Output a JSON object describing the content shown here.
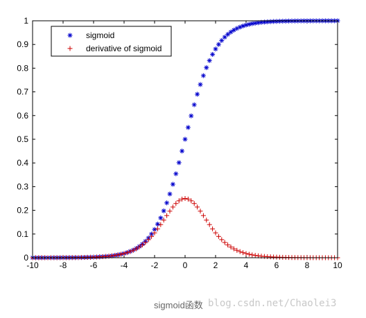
{
  "chart_data": {
    "type": "scatter",
    "title": "",
    "xlabel": "",
    "ylabel": "",
    "xlim": [
      -10,
      10
    ],
    "ylim": [
      0,
      1
    ],
    "x_ticks": [
      -10,
      -8,
      -6,
      -4,
      -2,
      0,
      2,
      4,
      6,
      8,
      10
    ],
    "y_ticks": [
      0,
      0.1,
      0.2,
      0.3,
      0.4,
      0.5,
      0.6,
      0.7,
      0.8,
      0.9,
      1
    ],
    "x_tick_labels": [
      "-10",
      "-8",
      "-6",
      "-4",
      "-2",
      "0",
      "2",
      "4",
      "6",
      "8",
      "10"
    ],
    "y_tick_labels": [
      "0",
      "0.1",
      "0.2",
      "0.3",
      "0.4",
      "0.5",
      "0.6",
      "0.7",
      "0.8",
      "0.9",
      "1"
    ],
    "x": [
      -10.0,
      -9.8,
      -9.6,
      -9.4,
      -9.2,
      -9.0,
      -8.8,
      -8.6,
      -8.4,
      -8.2,
      -8.0,
      -7.8,
      -7.6,
      -7.4,
      -7.2,
      -7.0,
      -6.8,
      -6.6,
      -6.4,
      -6.2,
      -6.0,
      -5.8,
      -5.6,
      -5.4,
      -5.2,
      -5.0,
      -4.8,
      -4.6,
      -4.4,
      -4.2,
      -4.0,
      -3.8,
      -3.6,
      -3.4,
      -3.2,
      -3.0,
      -2.8,
      -2.6,
      -2.4,
      -2.2,
      -2.0,
      -1.8,
      -1.6,
      -1.4,
      -1.2,
      -1.0,
      -0.8,
      -0.6,
      -0.4,
      -0.2,
      0.0,
      0.2,
      0.4,
      0.6,
      0.8,
      1.0,
      1.2,
      1.4,
      1.6,
      1.8,
      2.0,
      2.2,
      2.4,
      2.6,
      2.8,
      3.0,
      3.2,
      3.4,
      3.6,
      3.8,
      4.0,
      4.2,
      4.4,
      4.6,
      4.8,
      5.0,
      5.2,
      5.4,
      5.6,
      5.8,
      6.0,
      6.2,
      6.4,
      6.6,
      6.8,
      7.0,
      7.2,
      7.4,
      7.6,
      7.8,
      8.0,
      8.2,
      8.4,
      8.6,
      8.8,
      9.0,
      9.2,
      9.4,
      9.6,
      9.8,
      10.0
    ],
    "series": [
      {
        "name": "sigmoid",
        "marker": "asterisk",
        "color": "#0000cc",
        "values": [
          0.0,
          0.0001,
          0.0001,
          0.0001,
          0.0001,
          0.0001,
          0.0002,
          0.0002,
          0.0002,
          0.0003,
          0.0003,
          0.0004,
          0.0005,
          0.0006,
          0.0007,
          0.0009,
          0.0011,
          0.0014,
          0.0017,
          0.002,
          0.0025,
          0.003,
          0.0037,
          0.0045,
          0.0055,
          0.0067,
          0.0082,
          0.01,
          0.0121,
          0.0148,
          0.018,
          0.0219,
          0.0266,
          0.0323,
          0.0392,
          0.0474,
          0.0573,
          0.0691,
          0.0832,
          0.0998,
          0.1192,
          0.1419,
          0.168,
          0.1978,
          0.2315,
          0.2689,
          0.31,
          0.3543,
          0.4013,
          0.4502,
          0.5,
          0.5498,
          0.5987,
          0.6457,
          0.69,
          0.7311,
          0.7685,
          0.8022,
          0.832,
          0.8581,
          0.8808,
          0.9002,
          0.9168,
          0.9309,
          0.9427,
          0.9526,
          0.9608,
          0.9677,
          0.9734,
          0.9781,
          0.982,
          0.9852,
          0.9879,
          0.99,
          0.9918,
          0.9933,
          0.9945,
          0.9955,
          0.9963,
          0.997,
          0.9975,
          0.998,
          0.9983,
          0.9986,
          0.9989,
          0.9991,
          0.9993,
          0.9994,
          0.9995,
          0.9996,
          0.9997,
          0.9997,
          0.9998,
          0.9998,
          0.9998,
          0.9999,
          0.9999,
          0.9999,
          0.9999,
          0.9999,
          1.0
        ]
      },
      {
        "name": "derivative of sigmoid",
        "marker": "plus",
        "color": "#cc0000",
        "values": [
          0.0,
          0.0001,
          0.0001,
          0.0001,
          0.0001,
          0.0001,
          0.0002,
          0.0002,
          0.0002,
          0.0003,
          0.0003,
          0.0004,
          0.0005,
          0.0006,
          0.0007,
          0.0009,
          0.0011,
          0.0014,
          0.0017,
          0.002,
          0.0025,
          0.003,
          0.0037,
          0.0045,
          0.0055,
          0.0066,
          0.0081,
          0.0099,
          0.012,
          0.0146,
          0.0177,
          0.0214,
          0.0259,
          0.0313,
          0.0376,
          0.0452,
          0.054,
          0.0643,
          0.0763,
          0.0898,
          0.105,
          0.1217,
          0.1398,
          0.1587,
          0.1779,
          0.1966,
          0.2139,
          0.2288,
          0.2403,
          0.2475,
          0.25,
          0.2475,
          0.2403,
          0.2288,
          0.2139,
          0.1966,
          0.1779,
          0.1587,
          0.1398,
          0.1217,
          0.105,
          0.0898,
          0.0763,
          0.0643,
          0.054,
          0.0452,
          0.0376,
          0.0313,
          0.0259,
          0.0214,
          0.0177,
          0.0146,
          0.012,
          0.0099,
          0.0081,
          0.0066,
          0.0055,
          0.0045,
          0.0037,
          0.003,
          0.0025,
          0.002,
          0.0017,
          0.0014,
          0.0011,
          0.0009,
          0.0007,
          0.0006,
          0.0005,
          0.0004,
          0.0003,
          0.0003,
          0.0002,
          0.0002,
          0.0002,
          0.0001,
          0.0001,
          0.0001,
          0.0001,
          0.0001,
          0.0
        ]
      }
    ],
    "legend": {
      "position": "top-left",
      "entries": [
        "sigmoid",
        "derivative of sigmoid"
      ]
    },
    "grid": false
  },
  "caption": "sigmoid函数",
  "watermark": "blog.csdn.net/Chaolei3"
}
